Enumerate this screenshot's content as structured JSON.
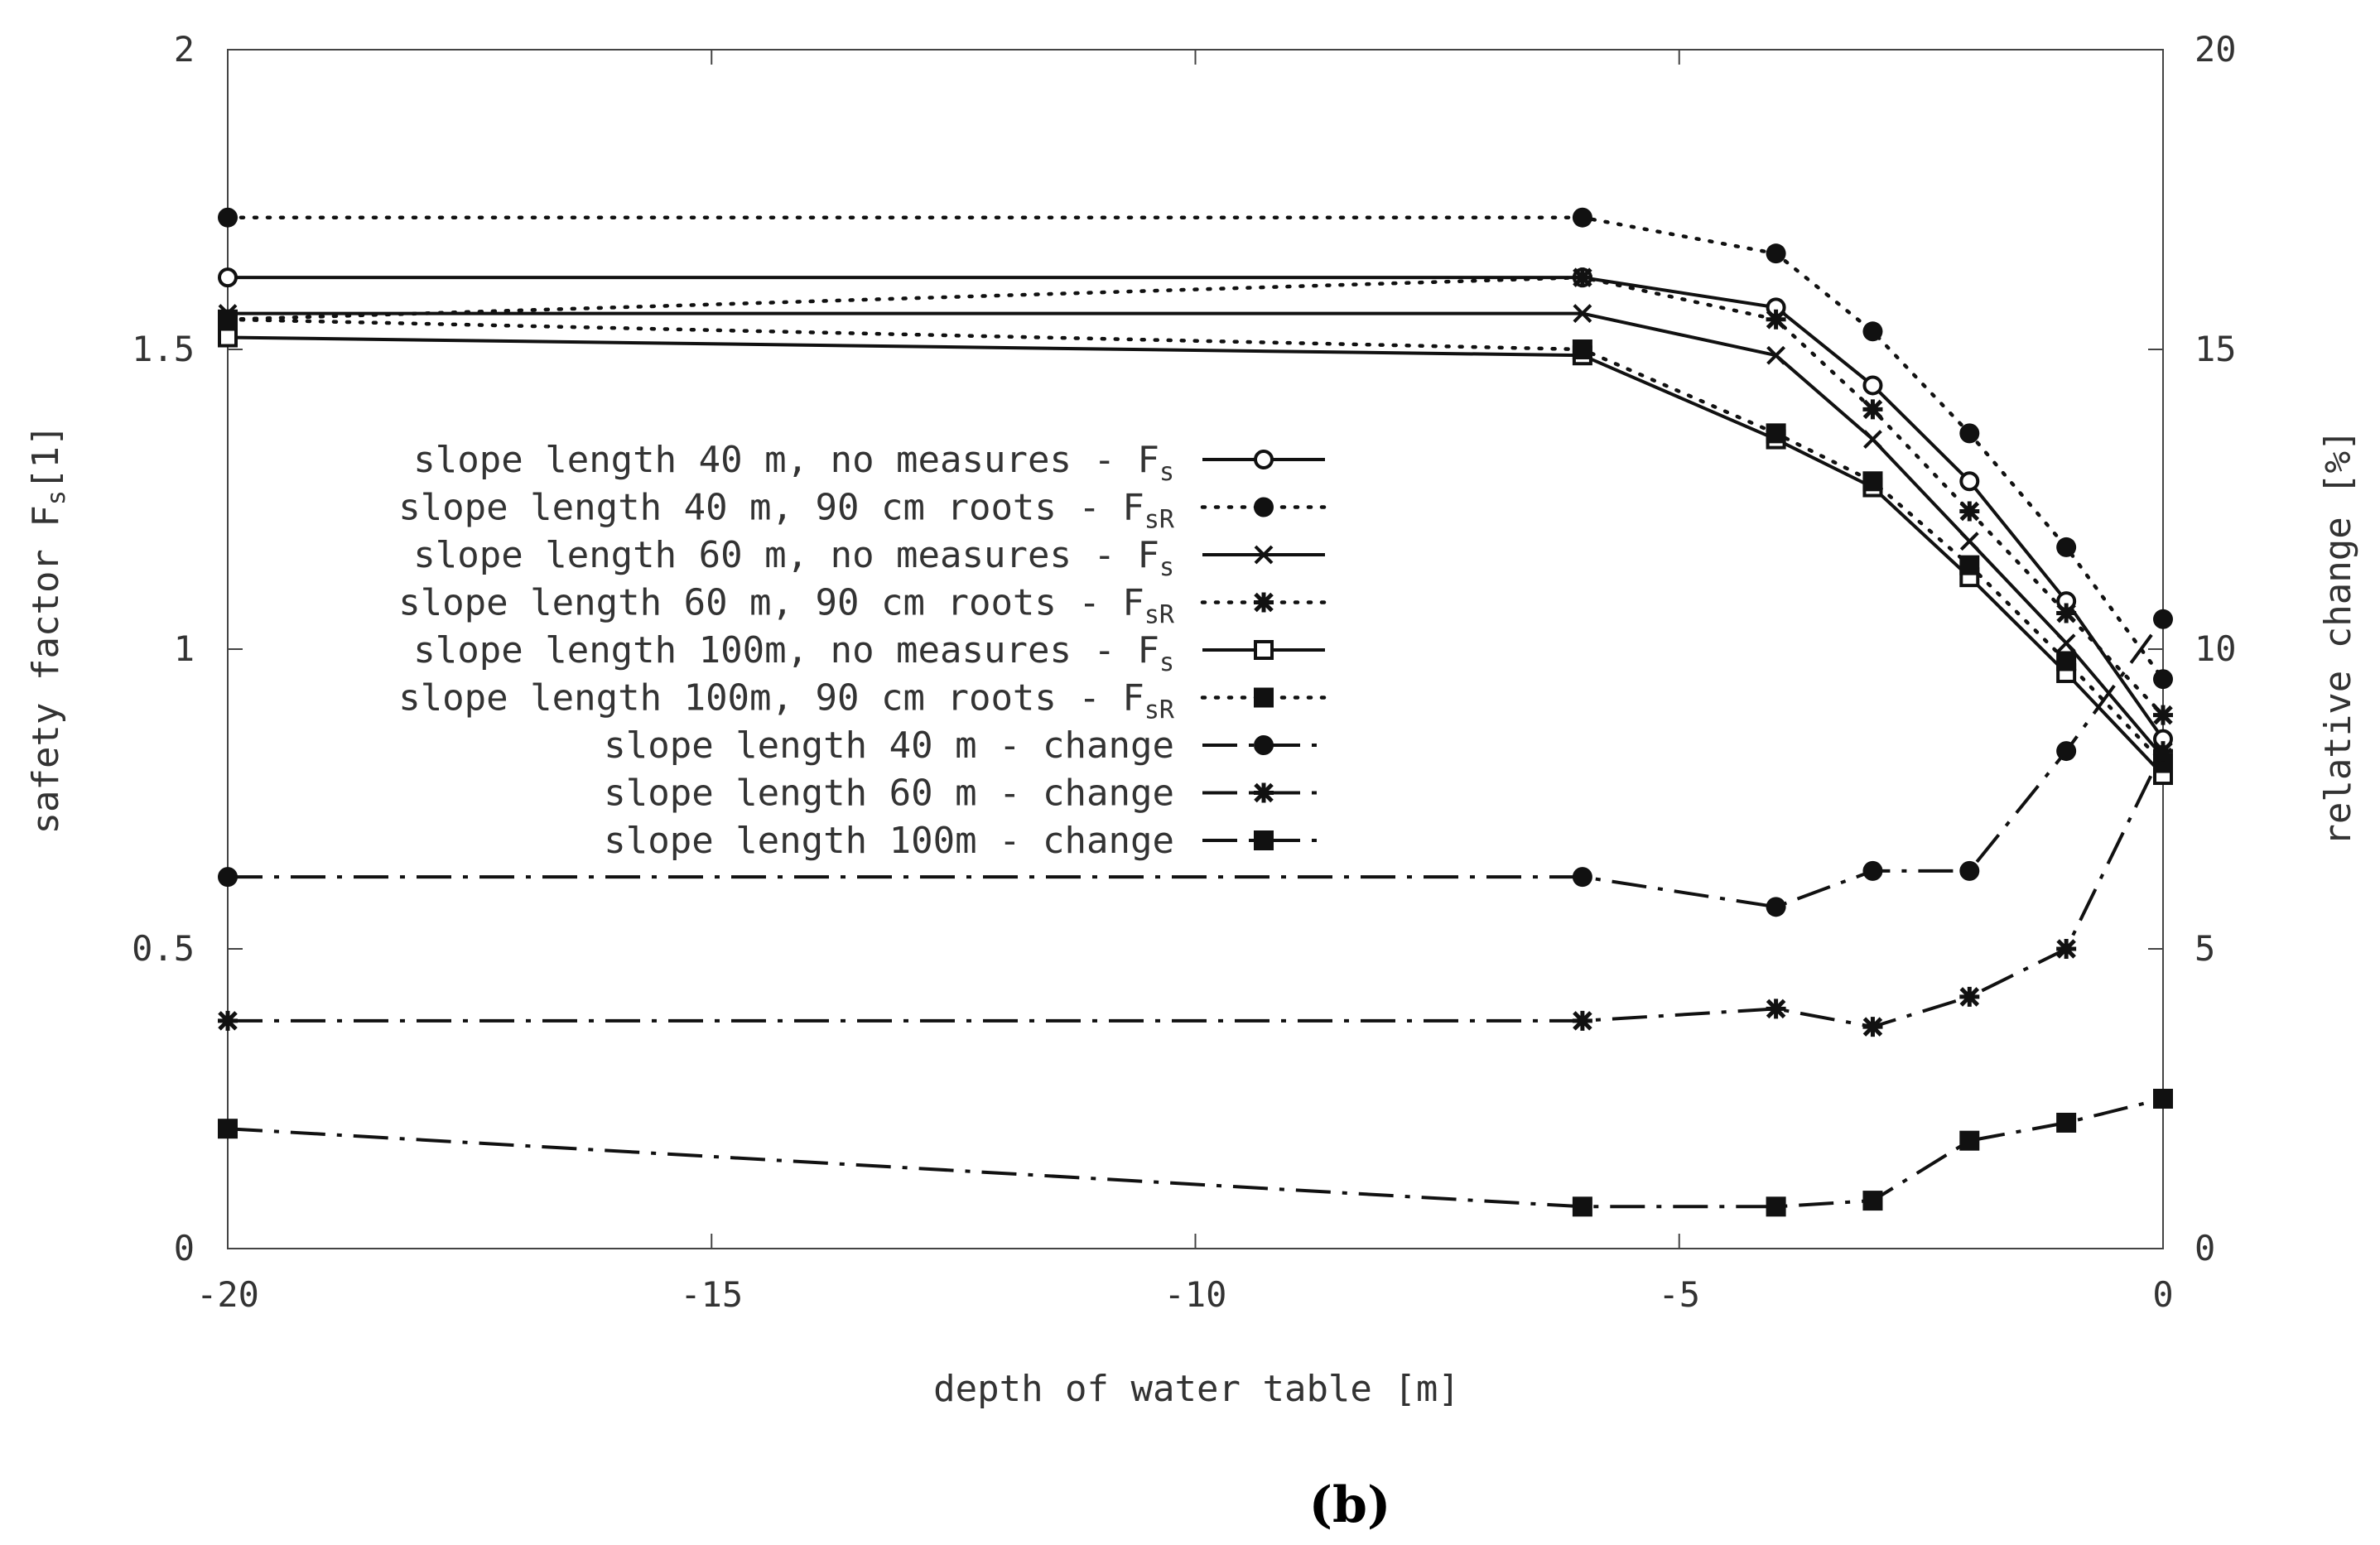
{
  "panel_label": "(b)",
  "chart_data": {
    "type": "line",
    "xlabel": "depth of water table [m]",
    "ylabel": {
      "main": "safety factor F",
      "sub": "s",
      "suffix": "[1]"
    },
    "y2label": "relative change [%]",
    "xlim": [
      -20,
      0
    ],
    "ylim": [
      0,
      2
    ],
    "y2lim": [
      0,
      20
    ],
    "xticks": [
      -20,
      -15,
      -10,
      -5,
      0
    ],
    "xtick_labels": [
      "-20",
      "-15",
      "-10",
      "-5",
      "0"
    ],
    "yticks": [
      0,
      0.5,
      1,
      1.5,
      2
    ],
    "ytick_labels": [
      "0",
      "0.5",
      "1",
      "1.5",
      "2"
    ],
    "y2ticks": [
      0,
      5,
      10,
      15,
      20
    ],
    "y2tick_labels": [
      "0",
      "5",
      "10",
      "15",
      "20"
    ],
    "grid": false,
    "legend_position": "center-left",
    "series": [
      {
        "name": "slope length 40 m, no measures - F",
        "name_sub": "s",
        "axis": "left",
        "style": "solid",
        "marker": "circle-open",
        "x": [
          -20,
          -6,
          -4,
          -3,
          -2,
          -1,
          0
        ],
        "y": [
          1.62,
          1.62,
          1.57,
          1.44,
          1.28,
          1.08,
          0.85
        ]
      },
      {
        "name": "slope length 40 m, 90 cm roots - F",
        "name_sub": "sR",
        "axis": "left",
        "style": "dotted",
        "marker": "circle-filled",
        "x": [
          -20,
          -6,
          -4,
          -3,
          -2,
          -1,
          0
        ],
        "y": [
          1.72,
          1.72,
          1.66,
          1.53,
          1.36,
          1.17,
          0.95
        ]
      },
      {
        "name": "slope length 60 m, no measures - F",
        "name_sub": "s",
        "axis": "left",
        "style": "solid",
        "marker": "x",
        "x": [
          -20,
          -6,
          -4,
          -3,
          -2,
          -1,
          0
        ],
        "y": [
          1.56,
          1.56,
          1.49,
          1.35,
          1.18,
          1.01,
          0.82
        ]
      },
      {
        "name": "slope length 60 m, 90 cm roots - F",
        "name_sub": "sR",
        "axis": "left",
        "style": "dotted",
        "marker": "star",
        "x": [
          -20,
          -6,
          -4,
          -3,
          -2,
          -1,
          0
        ],
        "y": [
          1.55,
          1.62,
          1.55,
          1.4,
          1.23,
          1.06,
          0.89
        ]
      },
      {
        "name": "slope length 100m, no measures - F",
        "name_sub": "s",
        "axis": "left",
        "style": "solid",
        "marker": "square-open",
        "x": [
          -20,
          -6,
          -4,
          -3,
          -2,
          -1,
          0
        ],
        "y": [
          1.52,
          1.49,
          1.35,
          1.27,
          1.12,
          0.96,
          0.79
        ]
      },
      {
        "name": "slope length 100m, 90 cm roots - F",
        "name_sub": "sR",
        "axis": "left",
        "style": "dotted",
        "marker": "square-filled",
        "x": [
          -20,
          -6,
          -4,
          -3,
          -2,
          -1,
          0
        ],
        "y": [
          1.55,
          1.5,
          1.36,
          1.28,
          1.14,
          0.98,
          0.81
        ]
      },
      {
        "name": "slope length 40 m - change",
        "axis": "right",
        "style": "dashdot",
        "marker": "circle-filled",
        "x": [
          -20,
          -6,
          -4,
          -3,
          -2,
          -1,
          0
        ],
        "y": [
          6.2,
          6.2,
          5.7,
          6.3,
          6.3,
          8.3,
          10.5
        ]
      },
      {
        "name": "slope length 60 m - change",
        "axis": "right",
        "style": "dashdot",
        "marker": "star",
        "x": [
          -20,
          -6,
          -4,
          -3,
          -2,
          -1,
          0
        ],
        "y": [
          3.8,
          3.8,
          4.0,
          3.7,
          4.2,
          5.0,
          8.3
        ]
      },
      {
        "name": "slope length 100m - change",
        "axis": "right",
        "style": "dashdot",
        "marker": "square-filled",
        "x": [
          -20,
          -6,
          -4,
          -3,
          -2,
          -1,
          0
        ],
        "y": [
          2.0,
          0.7,
          0.7,
          0.8,
          1.8,
          2.1,
          2.5
        ]
      }
    ]
  }
}
